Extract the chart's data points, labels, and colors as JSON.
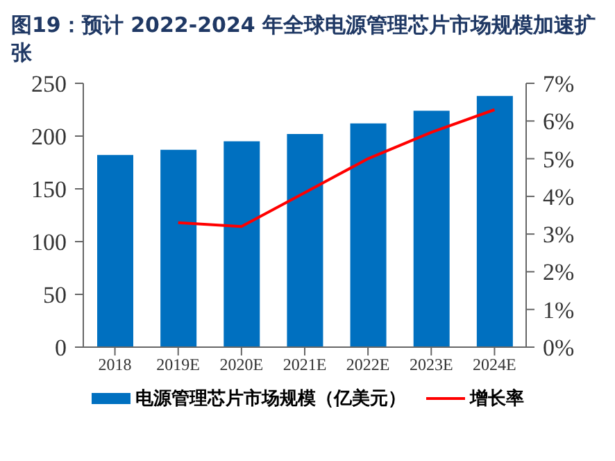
{
  "chart_data": {
    "type": "bar",
    "title": "图19：预计 2022-2024 年全球电源管理芯片市场规模加速扩张",
    "categories": [
      "2018",
      "2019E",
      "2020E",
      "2021E",
      "2022E",
      "2023E",
      "2024E"
    ],
    "series": [
      {
        "name": "电源管理芯片市场规模（亿美元）",
        "color": "#0070c0",
        "values": [
          182,
          187,
          195,
          202,
          212,
          224,
          238
        ]
      },
      {
        "name": "增长率",
        "type": "line",
        "axis": "y2",
        "color": "#ff0000",
        "values": [
          null,
          3.3,
          3.2,
          4.1,
          5.0,
          5.7,
          6.3
        ]
      }
    ],
    "ylim": [
      0,
      250
    ],
    "yticks": [
      0,
      50,
      100,
      150,
      200,
      250
    ],
    "y2lim": [
      0,
      7
    ],
    "y2ticks": [
      {
        "value": 0,
        "label": "0%"
      },
      {
        "value": 1,
        "label": "1%"
      },
      {
        "value": 2,
        "label": "2%"
      },
      {
        "value": 3,
        "label": "3%"
      },
      {
        "value": 4,
        "label": "4%"
      },
      {
        "value": 5,
        "label": "5%"
      },
      {
        "value": 6,
        "label": "6%"
      },
      {
        "value": 7,
        "label": "7%"
      }
    ],
    "grid": false,
    "legend": "bottom",
    "marker": "none"
  }
}
